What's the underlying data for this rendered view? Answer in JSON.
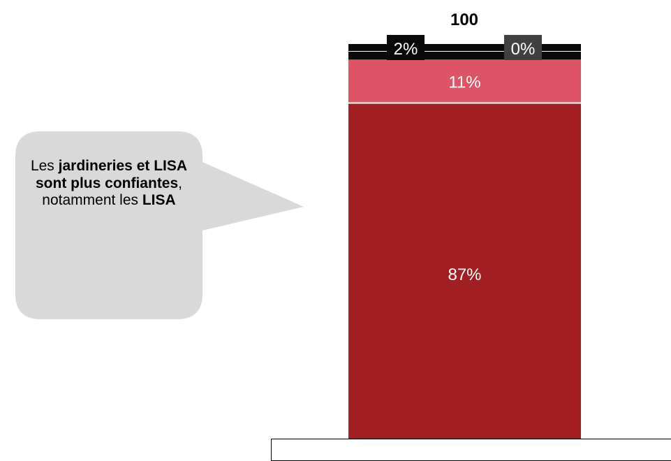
{
  "chart_data": {
    "type": "bar",
    "stacked": true,
    "total_label": "100",
    "categories": [
      ""
    ],
    "series": [
      {
        "label": "87%",
        "values": [
          87
        ],
        "color": "#a11f22",
        "label_color": "#ffffff"
      },
      {
        "label": "11%",
        "values": [
          11
        ],
        "color": "#dd5467",
        "label_color": "#ffffff"
      },
      {
        "label": "2%",
        "values": [
          2
        ],
        "color": "#0a0a0a",
        "label_color": "#ffffff"
      },
      {
        "label": "0%",
        "values": [
          0
        ],
        "color": "#404040",
        "label_color": "#ffffff"
      }
    ],
    "ylim": [
      0,
      100
    ]
  },
  "callout": {
    "parts": [
      {
        "text": "Les ",
        "bold": false
      },
      {
        "text": "jardineries et LISA sont plus confiantes",
        "bold": true
      },
      {
        "text": ", notamment les ",
        "bold": false
      },
      {
        "text": "LISA",
        "bold": true
      }
    ],
    "background": "#d9d9d9"
  }
}
